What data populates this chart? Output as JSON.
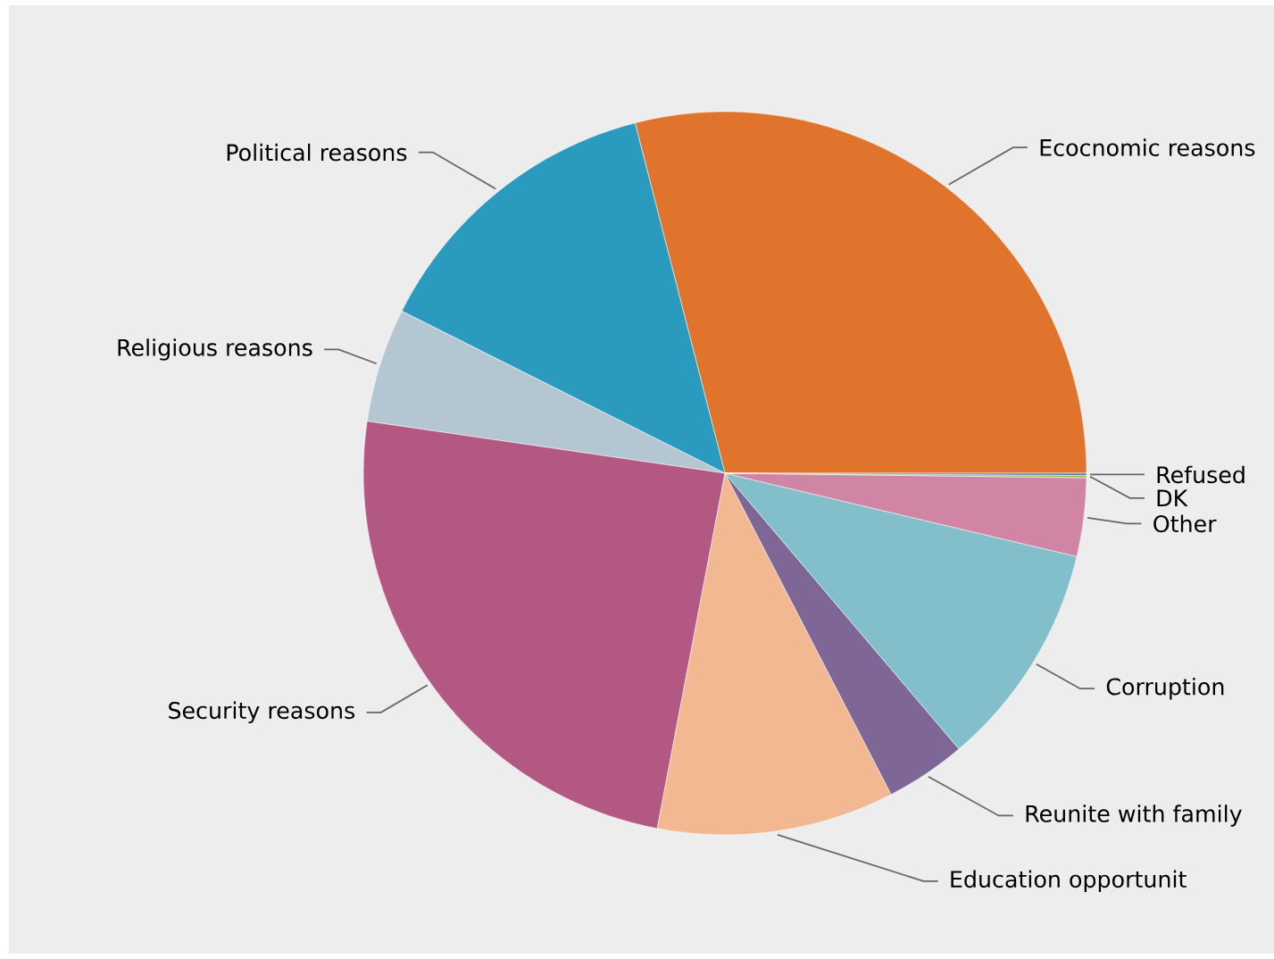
{
  "chart_data": {
    "type": "pie",
    "categories": [
      "Ecocnomic reasons",
      "Political reasons",
      "Religious reasons",
      "Security reasons",
      "Education opportunit",
      "Reunite with family",
      "Corruption",
      "Other",
      "DK",
      "Refused"
    ],
    "values": [
      29.0,
      13.6,
      5.1,
      24.3,
      10.6,
      3.6,
      10.1,
      3.5,
      0.1,
      0.1
    ],
    "colors": [
      "#e0742c",
      "#2a9abf",
      "#b5c6d3",
      "#b25882",
      "#f2b891",
      "#7e6796",
      "#82bfcb",
      "#d085a5",
      "#9bbb59",
      "#4f81bd"
    ]
  }
}
